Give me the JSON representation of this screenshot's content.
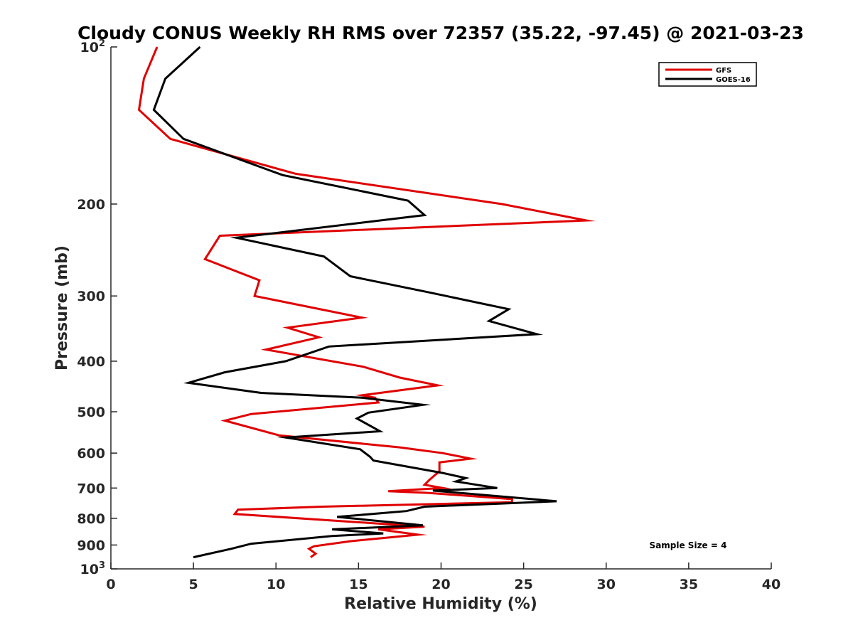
{
  "chart_data": {
    "type": "line",
    "title": "Cloudy CONUS Weekly RH RMS over 72357 (35.22, -97.45) @ 2021-03-23",
    "xlabel": "Relative Humidity (%)",
    "ylabel": "Pressure (mb)",
    "xlim": [
      0,
      40
    ],
    "ylim": [
      100,
      1000
    ],
    "y_scale": "log",
    "y_reversed": true,
    "x_ticks": [
      0,
      5,
      10,
      15,
      20,
      25,
      30,
      35,
      40
    ],
    "y_ticks": [
      {
        "value": 100,
        "label": "10",
        "sup": "2"
      },
      {
        "value": 200,
        "label": "200",
        "sup": ""
      },
      {
        "value": 300,
        "label": "300",
        "sup": ""
      },
      {
        "value": 400,
        "label": "400",
        "sup": ""
      },
      {
        "value": 500,
        "label": "500",
        "sup": ""
      },
      {
        "value": 600,
        "label": "600",
        "sup": ""
      },
      {
        "value": 700,
        "label": "700",
        "sup": ""
      },
      {
        "value": 800,
        "label": "800",
        "sup": ""
      },
      {
        "value": 900,
        "label": "900",
        "sup": ""
      },
      {
        "value": 1000,
        "label": "10",
        "sup": "3"
      }
    ],
    "grid": false,
    "legend_position": "top-right",
    "annotation": "Sample Size = 4",
    "series": [
      {
        "name": "GFS",
        "color": "#e00000",
        "points": [
          [
            2.8,
            100
          ],
          [
            2.0,
            115
          ],
          [
            1.7,
            132
          ],
          [
            3.6,
            150
          ],
          [
            11.2,
            175
          ],
          [
            23.7,
            200
          ],
          [
            28.8,
            215
          ],
          [
            6.6,
            230
          ],
          [
            5.7,
            255
          ],
          [
            9.0,
            280
          ],
          [
            8.7,
            300
          ],
          [
            15.2,
            330
          ],
          [
            10.7,
            345
          ],
          [
            12.6,
            360
          ],
          [
            9.4,
            380
          ],
          [
            15.3,
            410
          ],
          [
            17.5,
            430
          ],
          [
            19.8,
            445
          ],
          [
            15.2,
            465
          ],
          [
            16.0,
            470
          ],
          [
            16.2,
            480
          ],
          [
            8.5,
            505
          ],
          [
            6.9,
            520
          ],
          [
            10.2,
            555
          ],
          [
            17.5,
            585
          ],
          [
            20.1,
            600
          ],
          [
            21.8,
            615
          ],
          [
            19.9,
            625
          ],
          [
            19.9,
            650
          ],
          [
            19.3,
            675
          ],
          [
            19.0,
            690
          ],
          [
            20.1,
            700
          ],
          [
            16.8,
            710
          ],
          [
            19.2,
            715
          ],
          [
            24.3,
            735
          ],
          [
            24.3,
            745
          ],
          [
            12.8,
            760
          ],
          [
            7.7,
            770
          ],
          [
            7.5,
            785
          ],
          [
            19.0,
            830
          ],
          [
            16.2,
            840
          ],
          [
            18.6,
            860
          ],
          [
            14.5,
            885
          ],
          [
            12.3,
            905
          ],
          [
            12.0,
            915
          ],
          [
            12.4,
            935
          ],
          [
            12.1,
            950
          ]
        ]
      },
      {
        "name": "GOES-16",
        "color": "#000000",
        "points": [
          [
            5.4,
            100
          ],
          [
            3.3,
            115
          ],
          [
            2.6,
            132
          ],
          [
            4.4,
            150
          ],
          [
            10.4,
            176
          ],
          [
            18.0,
            197
          ],
          [
            19.0,
            210
          ],
          [
            7.6,
            232
          ],
          [
            12.9,
            252
          ],
          [
            14.5,
            275
          ],
          [
            19.2,
            295
          ],
          [
            24.1,
            318
          ],
          [
            22.9,
            335
          ],
          [
            25.8,
            355
          ],
          [
            13.2,
            375
          ],
          [
            10.6,
            400
          ],
          [
            6.9,
            420
          ],
          [
            4.7,
            440
          ],
          [
            9.1,
            460
          ],
          [
            15.2,
            470
          ],
          [
            18.9,
            485
          ],
          [
            15.6,
            502
          ],
          [
            14.9,
            515
          ],
          [
            16.3,
            545
          ],
          [
            10.6,
            560
          ],
          [
            15.1,
            590
          ],
          [
            15.7,
            610
          ],
          [
            15.9,
            620
          ],
          [
            20.1,
            655
          ],
          [
            21.5,
            670
          ],
          [
            20.9,
            680
          ],
          [
            23.4,
            700
          ],
          [
            19.5,
            708
          ],
          [
            27.0,
            742
          ],
          [
            19.0,
            760
          ],
          [
            17.9,
            775
          ],
          [
            13.7,
            795
          ],
          [
            18.9,
            825
          ],
          [
            13.4,
            840
          ],
          [
            16.5,
            855
          ],
          [
            13.4,
            865
          ],
          [
            8.5,
            895
          ],
          [
            7.3,
            915
          ],
          [
            5.0,
            950
          ]
        ]
      }
    ]
  }
}
